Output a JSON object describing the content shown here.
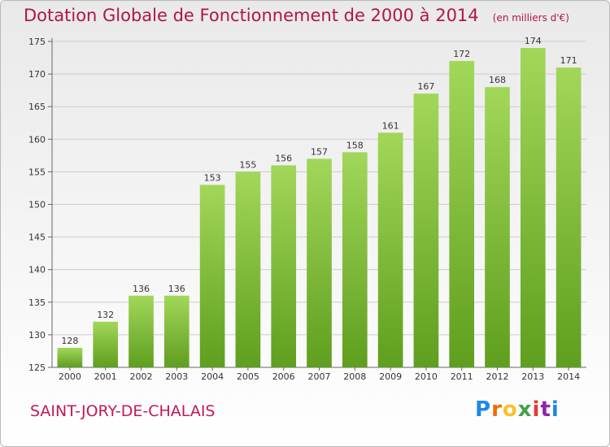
{
  "header": {
    "title": "Dotation Globale de Fonctionnement de 2000 à 2014",
    "unit": "(en milliers d'€)"
  },
  "footer": {
    "town": "SAINT-JORY-DE-CHALAIS",
    "logo_letters": [
      "P",
      "r",
      "o",
      "x",
      "i",
      "t",
      "i"
    ],
    "logo_colors": [
      "#1e88e5",
      "#ef6c00",
      "#fbc02d",
      "#43a047",
      "#e53935",
      "#8e24aa",
      "#1e88e5"
    ]
  },
  "colors": {
    "bar_top": "#a2d75a",
    "bar_bottom": "#5f9e1e",
    "title": "#b0154d",
    "grid": "#cccccc"
  },
  "chart_data": {
    "type": "bar",
    "categories": [
      "2000",
      "2001",
      "2002",
      "2003",
      "2004",
      "2005",
      "2006",
      "2007",
      "2008",
      "2009",
      "2010",
      "2011",
      "2012",
      "2013",
      "2014"
    ],
    "values": [
      128,
      132,
      136,
      136,
      153,
      155,
      156,
      157,
      158,
      161,
      167,
      172,
      168,
      174,
      171
    ],
    "ylim": [
      125,
      175
    ],
    "yticks": [
      125,
      130,
      135,
      140,
      145,
      150,
      155,
      160,
      165,
      170,
      175
    ],
    "grid": true,
    "xlabel": "",
    "ylabel": ""
  }
}
